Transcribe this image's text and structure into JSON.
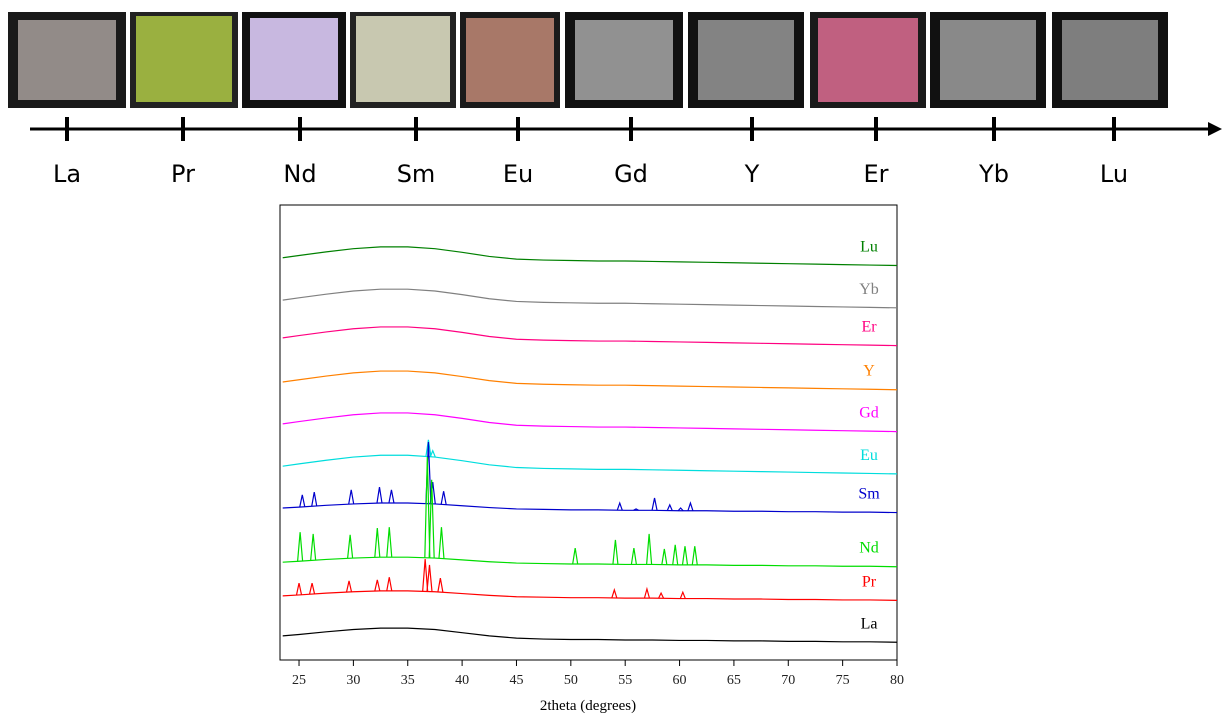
{
  "timeline": {
    "labels": [
      "La",
      "Pr",
      "Nd",
      "Sm",
      "Eu",
      "Gd",
      "Y",
      "Er",
      "Yb",
      "Lu"
    ]
  },
  "chart_data": {
    "type": "line",
    "x_label": "2theta (degrees)",
    "x": [
      23.5,
      25,
      27.5,
      30,
      32.5,
      35,
      37.5,
      40,
      42.5,
      45,
      47.5,
      50,
      52.5,
      55,
      57.5,
      60,
      62.5,
      65,
      67.5,
      70,
      72.5,
      75,
      77.5,
      80
    ],
    "xlim": [
      23.25,
      80
    ],
    "xticks": [
      25,
      30,
      35,
      40,
      45,
      50,
      55,
      60,
      65,
      70,
      75,
      80
    ],
    "ylim": [
      0,
      100
    ],
    "series": [
      {
        "name": "Lu",
        "color": "#008000",
        "values": [
          88.4,
          88.9,
          89.7,
          90.4,
          90.8,
          90.8,
          90.4,
          89.6,
          88.7,
          88.1,
          87.9,
          87.8,
          87.7,
          87.7,
          87.6,
          87.5,
          87.4,
          87.3,
          87.2,
          87.1,
          87,
          86.9,
          86.8,
          86.7
        ]
      },
      {
        "name": "Yb",
        "color": "#808080",
        "values": [
          79.1,
          79.6,
          80.4,
          81.1,
          81.5,
          81.5,
          81.1,
          80.3,
          79.4,
          78.8,
          78.6,
          78.5,
          78.4,
          78.4,
          78.3,
          78.2,
          78.1,
          78,
          77.9,
          77.8,
          77.7,
          77.6,
          77.5,
          77.4
        ]
      },
      {
        "name": "Er",
        "color": "#ff0080",
        "values": [
          70.8,
          71.3,
          72.1,
          72.8,
          73.2,
          73.2,
          72.8,
          72,
          71.1,
          70.5,
          70.3,
          70.2,
          70.1,
          70.1,
          70,
          69.9,
          69.8,
          69.7,
          69.6,
          69.5,
          69.4,
          69.3,
          69.2,
          69.1
        ]
      },
      {
        "name": "Y",
        "color": "#ff8000",
        "values": [
          61.1,
          61.6,
          62.4,
          63.1,
          63.5,
          63.5,
          63.1,
          62.3,
          61.4,
          60.8,
          60.6,
          60.5,
          60.4,
          60.4,
          60.3,
          60.2,
          60.1,
          60,
          59.9,
          59.8,
          59.7,
          59.6,
          59.5,
          59.4
        ]
      },
      {
        "name": "Gd",
        "color": "#ff00ff",
        "values": [
          51.9,
          52.4,
          53.2,
          53.9,
          54.3,
          54.3,
          53.9,
          53.1,
          52.2,
          51.6,
          51.4,
          51.3,
          51.2,
          51.2,
          51.1,
          51,
          50.9,
          50.8,
          50.7,
          50.6,
          50.5,
          50.4,
          50.3,
          50.2
        ]
      },
      {
        "name": "Eu",
        "color": "#00dddd",
        "values": [
          42.6,
          43.1,
          43.9,
          44.6,
          45,
          45,
          44.6,
          43.8,
          42.9,
          42.3,
          42.1,
          42,
          41.9,
          41.9,
          41.8,
          41.7,
          41.6,
          41.5,
          41.4,
          41.3,
          41.2,
          41.1,
          41,
          40.9
        ],
        "peaks": {
          "x": [
            36.9,
            37.3
          ],
          "values": [
            48.4,
            46
          ]
        }
      },
      {
        "name": "Sm",
        "color": "#0000cc",
        "values": [
          33.4,
          33.6,
          34,
          34.3,
          34.5,
          34.5,
          34.3,
          33.9,
          33.5,
          33.2,
          33.1,
          33,
          33,
          32.9,
          32.9,
          32.8,
          32.8,
          32.7,
          32.7,
          32.6,
          32.6,
          32.5,
          32.5,
          32.4
        ],
        "peaks": {
          "x": [
            25.3,
            26.4,
            29.8,
            32.4,
            33.5,
            36.9,
            37.3,
            38.3,
            54.5,
            56,
            57.7,
            59.1,
            60.1,
            61
          ],
          "values": [
            36.3,
            36.9,
            37.4,
            38,
            37.4,
            47.9,
            39.1,
            37.1,
            34.5,
            33.2,
            35.6,
            34.1,
            33.4,
            34.5
          ]
        }
      },
      {
        "name": "Nd",
        "color": "#00dd00",
        "values": [
          21.5,
          21.7,
          22.1,
          22.4,
          22.6,
          22.6,
          22.4,
          22,
          21.6,
          21.3,
          21.2,
          21.1,
          21.1,
          21,
          21,
          20.9,
          20.9,
          20.8,
          20.8,
          20.7,
          20.7,
          20.6,
          20.6,
          20.5
        ],
        "peaks": {
          "x": [
            25.1,
            26.3,
            29.7,
            32.2,
            33.3,
            36.8,
            37.2,
            38.1,
            50.4,
            54.1,
            55.8,
            57.2,
            58.6,
            59.6,
            60.5,
            61.4
          ],
          "values": [
            28.1,
            27.7,
            27.5,
            29,
            29.2,
            44.6,
            39.6,
            29.2,
            24.6,
            26.4,
            24.6,
            27.7,
            24.4,
            25.3,
            25,
            25
          ]
        }
      },
      {
        "name": "Pr",
        "color": "#ff0000",
        "values": [
          14.1,
          14.3,
          14.7,
          15,
          15.2,
          15.2,
          15,
          14.6,
          14.2,
          13.9,
          13.8,
          13.7,
          13.7,
          13.6,
          13.6,
          13.5,
          13.5,
          13.4,
          13.4,
          13.3,
          13.3,
          13.2,
          13.2,
          13.1
        ],
        "peaks": {
          "x": [
            25,
            26.2,
            29.6,
            32.2,
            33.3,
            36.6,
            37,
            38,
            54,
            57,
            58.3,
            60.3
          ],
          "values": [
            16.9,
            16.9,
            17.4,
            17.6,
            18.2,
            22.2,
            20.9,
            18,
            15.4,
            15.6,
            14.7,
            14.9
          ]
        }
      },
      {
        "name": "La",
        "color": "#000000",
        "values": [
          5.3,
          5.6,
          6.2,
          6.7,
          7,
          7,
          6.7,
          6,
          5.3,
          4.8,
          4.6,
          4.5,
          4.5,
          4.4,
          4.4,
          4.3,
          4.3,
          4.2,
          4.2,
          4.1,
          4.1,
          4,
          4,
          3.9
        ]
      }
    ]
  }
}
